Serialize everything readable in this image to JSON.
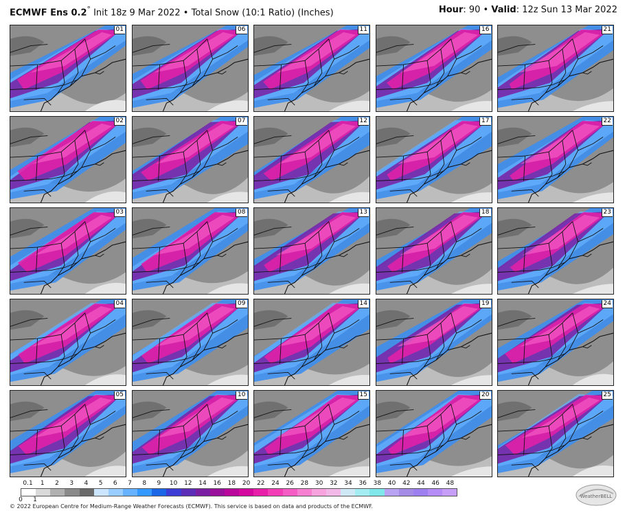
{
  "header": {
    "model": "ECMWF Ens 0.2",
    "degree": "°",
    "init": " Init 18z 9 Mar 2022",
    "separator": " • ",
    "product": "Total Snow (10:1 Ratio) (Inches)",
    "hour_label": "Hour",
    "hour_value": ": 90 • ",
    "valid_label": "Valid",
    "valid_value": ": 12z Sun 13 Mar 2022"
  },
  "members": [
    "01",
    "06",
    "11",
    "16",
    "21",
    "02",
    "07",
    "12",
    "17",
    "22",
    "03",
    "08",
    "13",
    "18",
    "23",
    "04",
    "09",
    "14",
    "19",
    "24",
    "05",
    "10",
    "15",
    "20",
    "25"
  ],
  "scale": {
    "top_labels": [
      "0.1",
      "1",
      "2",
      "3",
      "4",
      "5",
      "6",
      "7",
      "8",
      "9",
      "10",
      "12",
      "14",
      "16",
      "18",
      "20",
      "22",
      "24",
      "26",
      "28",
      "30",
      "32",
      "34",
      "36",
      "38",
      "40",
      "42",
      "44",
      "46",
      "48"
    ],
    "bottom_labels": [
      "0",
      "1"
    ],
    "colors": [
      "#ffffff",
      "#d9d9d9",
      "#b0b0b0",
      "#8a8a8a",
      "#6a6a6a",
      "#cce5ff",
      "#99ccff",
      "#66b2ff",
      "#3399ff",
      "#1a66e6",
      "#3d3dd6",
      "#5c2eb8",
      "#7a1fa3",
      "#99119a",
      "#b8079a",
      "#d4089e",
      "#e81fa8",
      "#f23db6",
      "#f55cc4",
      "#f77fd1",
      "#f7a3de",
      "#f2b8e8",
      "#cfe8f5",
      "#a3ecf2",
      "#7fe6ea",
      "#b8a3f2",
      "#a38be6",
      "#9e7ff0",
      "#b58bf5",
      "#c79ef7"
    ]
  },
  "footer": {
    "copyright": "© 2022 European Centre for Medium-Range Weather Forecasts (ECMWF). This service is based on data and products of the ECMWF."
  },
  "logo": {
    "text": "WeatherBELL"
  }
}
